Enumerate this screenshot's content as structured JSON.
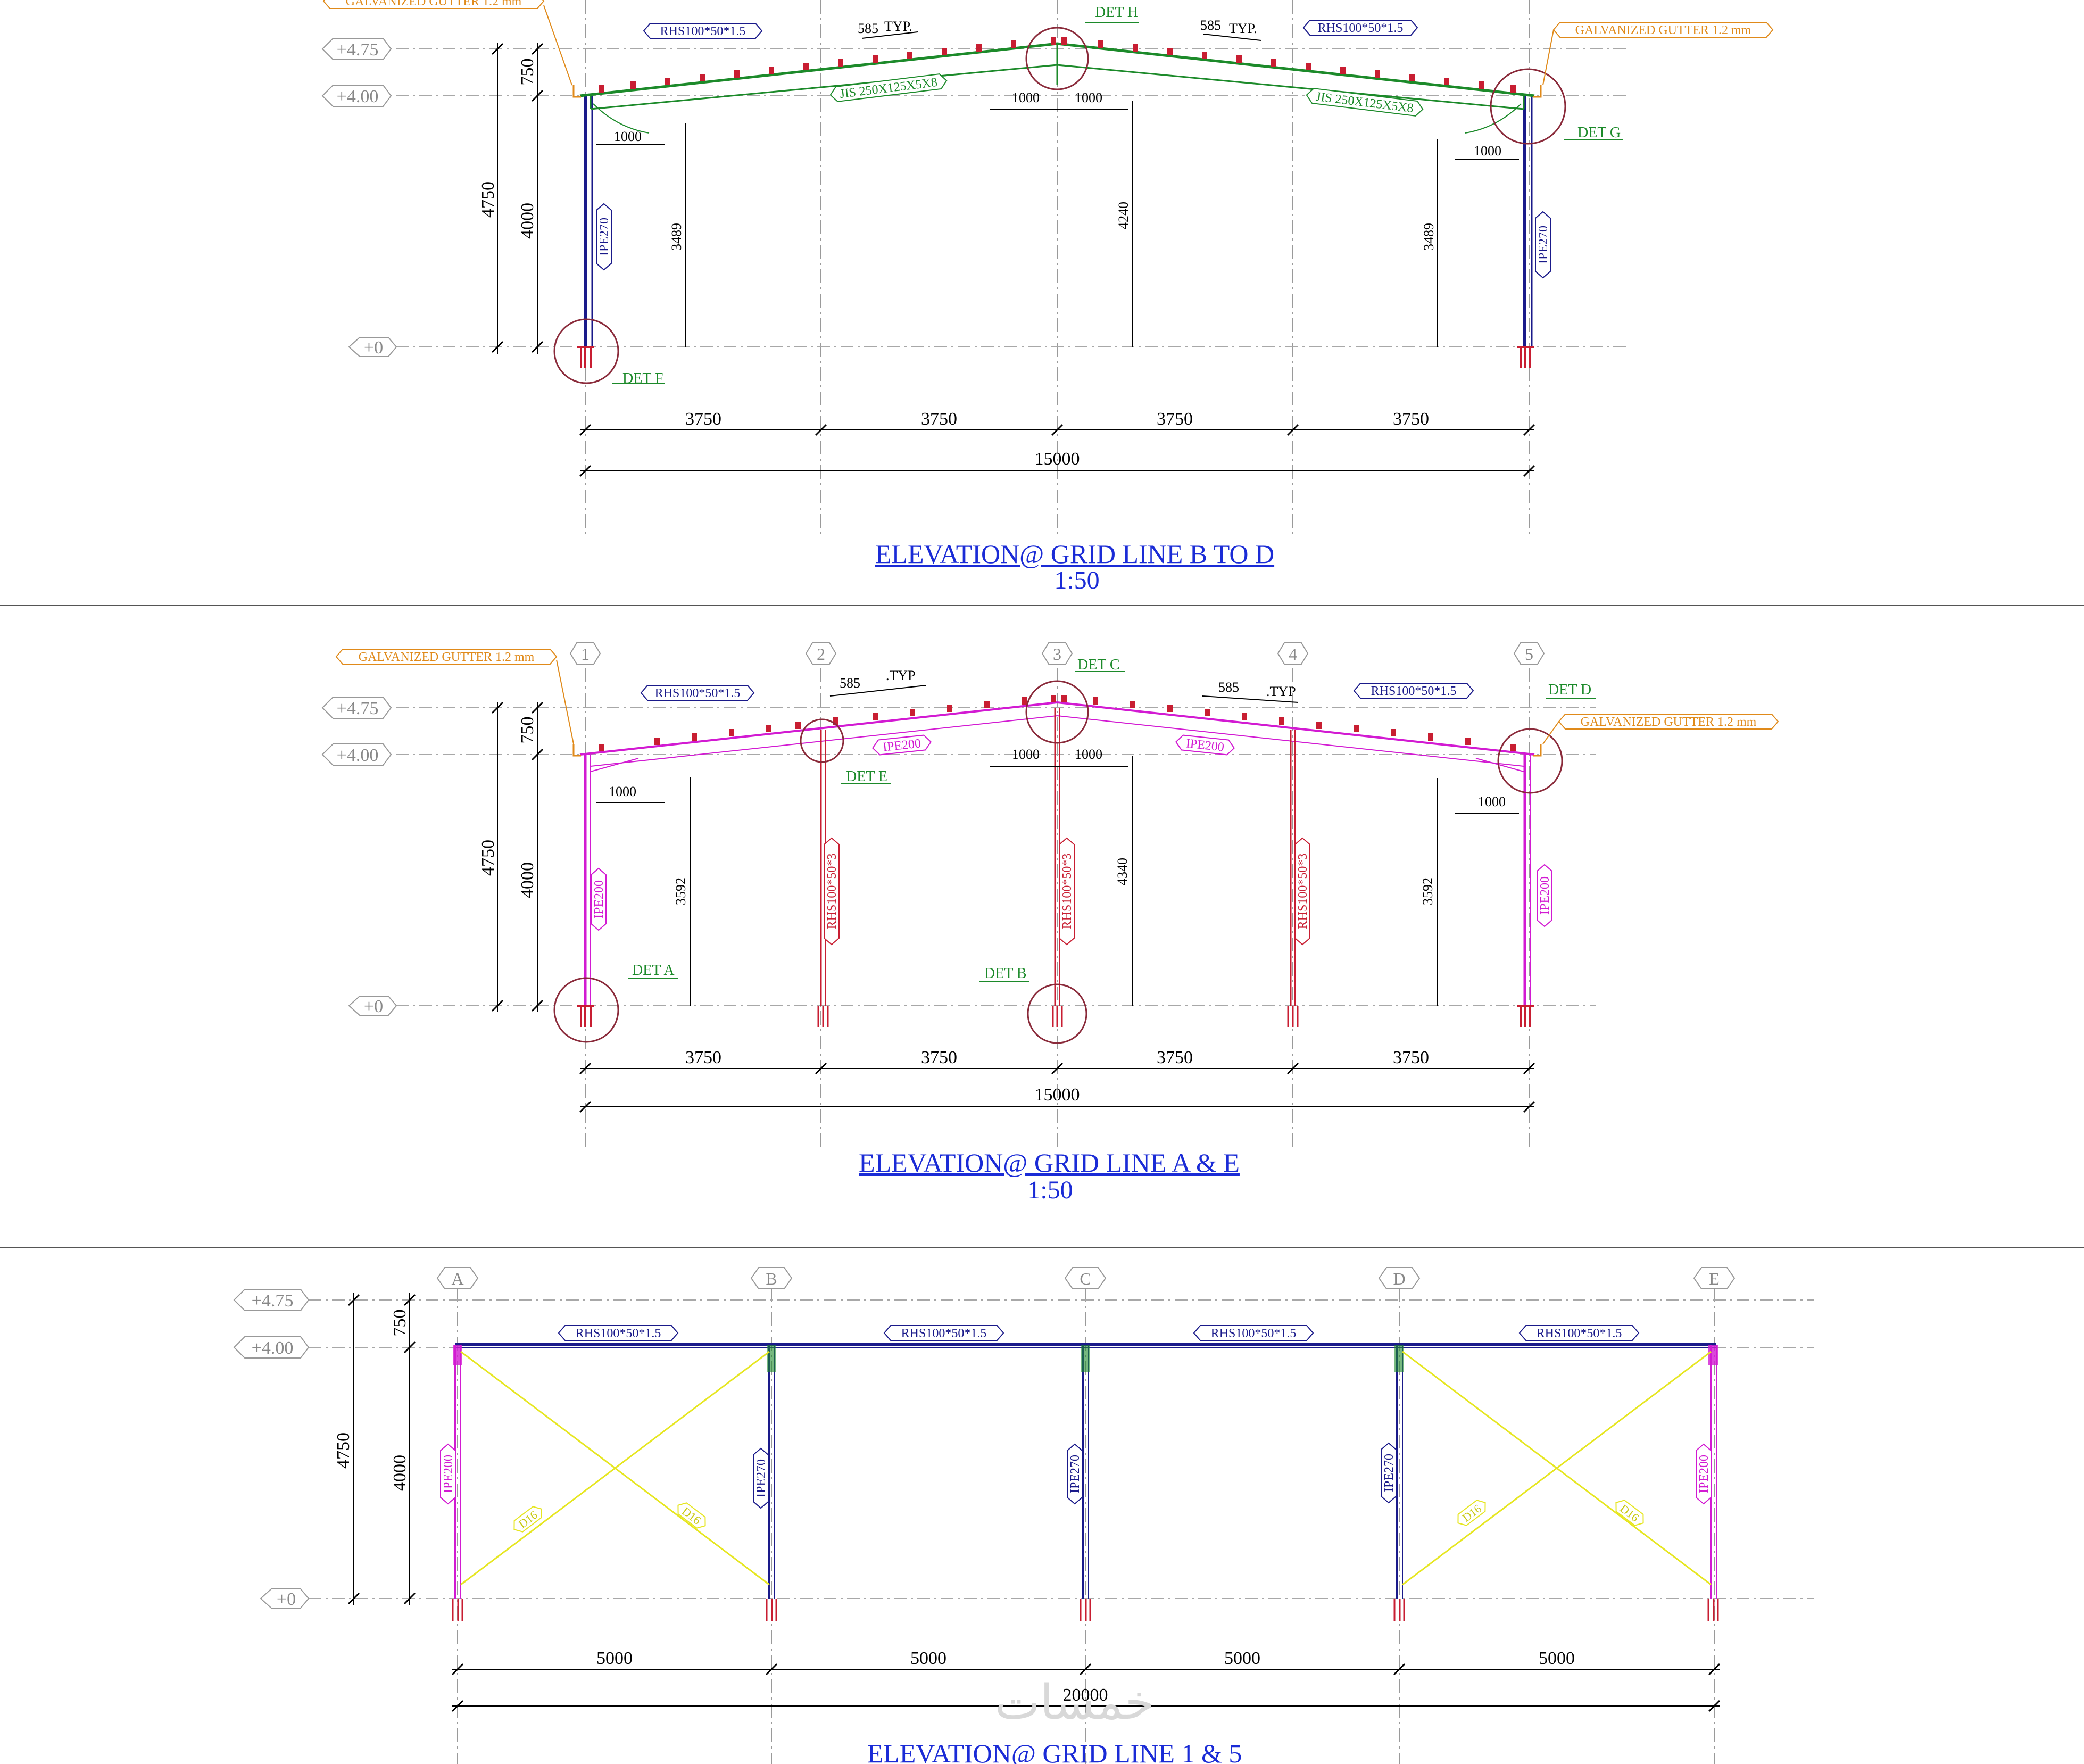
{
  "colors": {
    "rafter_bd": "#1c8a2a",
    "frame_ae": "#d21ad2",
    "purlin": "#1a1a8a",
    "column_red": "#c81e32",
    "title": "#1a2bd6",
    "gutter": "#e08a1a",
    "bracing": "#e6e620"
  },
  "levels": {
    "l475": "+4.75",
    "l400": "+4.00",
    "l0": "+0"
  },
  "icons": {
    "detail": "circle-callout",
    "level": "hexagon-tag",
    "grid": "hexagon-bubble"
  },
  "views": [
    {
      "title": "ELEVATION@ GRID LINE B TO D",
      "scale": "1:50",
      "dims": {
        "bay": "3750",
        "total": "15000",
        "top": "750",
        "col": "4000",
        "overall": "4750",
        "h_side": "3489",
        "h_mid": "4240",
        "offset": "1000",
        "pitch": "585",
        "typ": "TYP."
      },
      "labels": {
        "purlin": "RHS100*50*1.5",
        "rafter": "JIS 250X125X5X8",
        "column": "IPE270",
        "gutter": "GALVANIZED GUTTER 1.2 mm"
      },
      "details": {
        "ridge": "DET H",
        "eave": "DET G",
        "base": "DET F"
      }
    },
    {
      "title": "ELEVATION@ GRID LINE A & E",
      "scale": "1:50",
      "grid": [
        "1",
        "2",
        "3",
        "4",
        "5"
      ],
      "dims": {
        "bay": "3750",
        "total": "15000",
        "top": "750",
        "col": "4000",
        "overall": "4750",
        "h_side": "3592",
        "h_mid": "4340",
        "offset": "1000",
        "pitch": "585",
        "typ": ".TYP"
      },
      "labels": {
        "purlin": "RHS100*50*1.5",
        "rafter": "IPE200",
        "column": "IPE200",
        "post": "RHS100*50*3",
        "gutter": "GALVANIZED GUTTER 1.2 mm"
      },
      "details": {
        "ridge": "DET C",
        "eave_right": "DET D",
        "knee": "DET E",
        "base_left": "DET A",
        "base_mid": "DET B"
      }
    },
    {
      "title": "ELEVATION@ GRID LINE 1 & 5",
      "grid": [
        "A",
        "B",
        "C",
        "D",
        "E"
      ],
      "dims": {
        "bay": "5000",
        "total": "20000",
        "top": "750",
        "col": "4000",
        "overall": "4750"
      },
      "labels": {
        "purlin": "RHS100*50*1.5",
        "col_end": "IPE200",
        "col_mid": "IPE270",
        "brace": "D16"
      }
    }
  ],
  "watermark": "خمسات"
}
